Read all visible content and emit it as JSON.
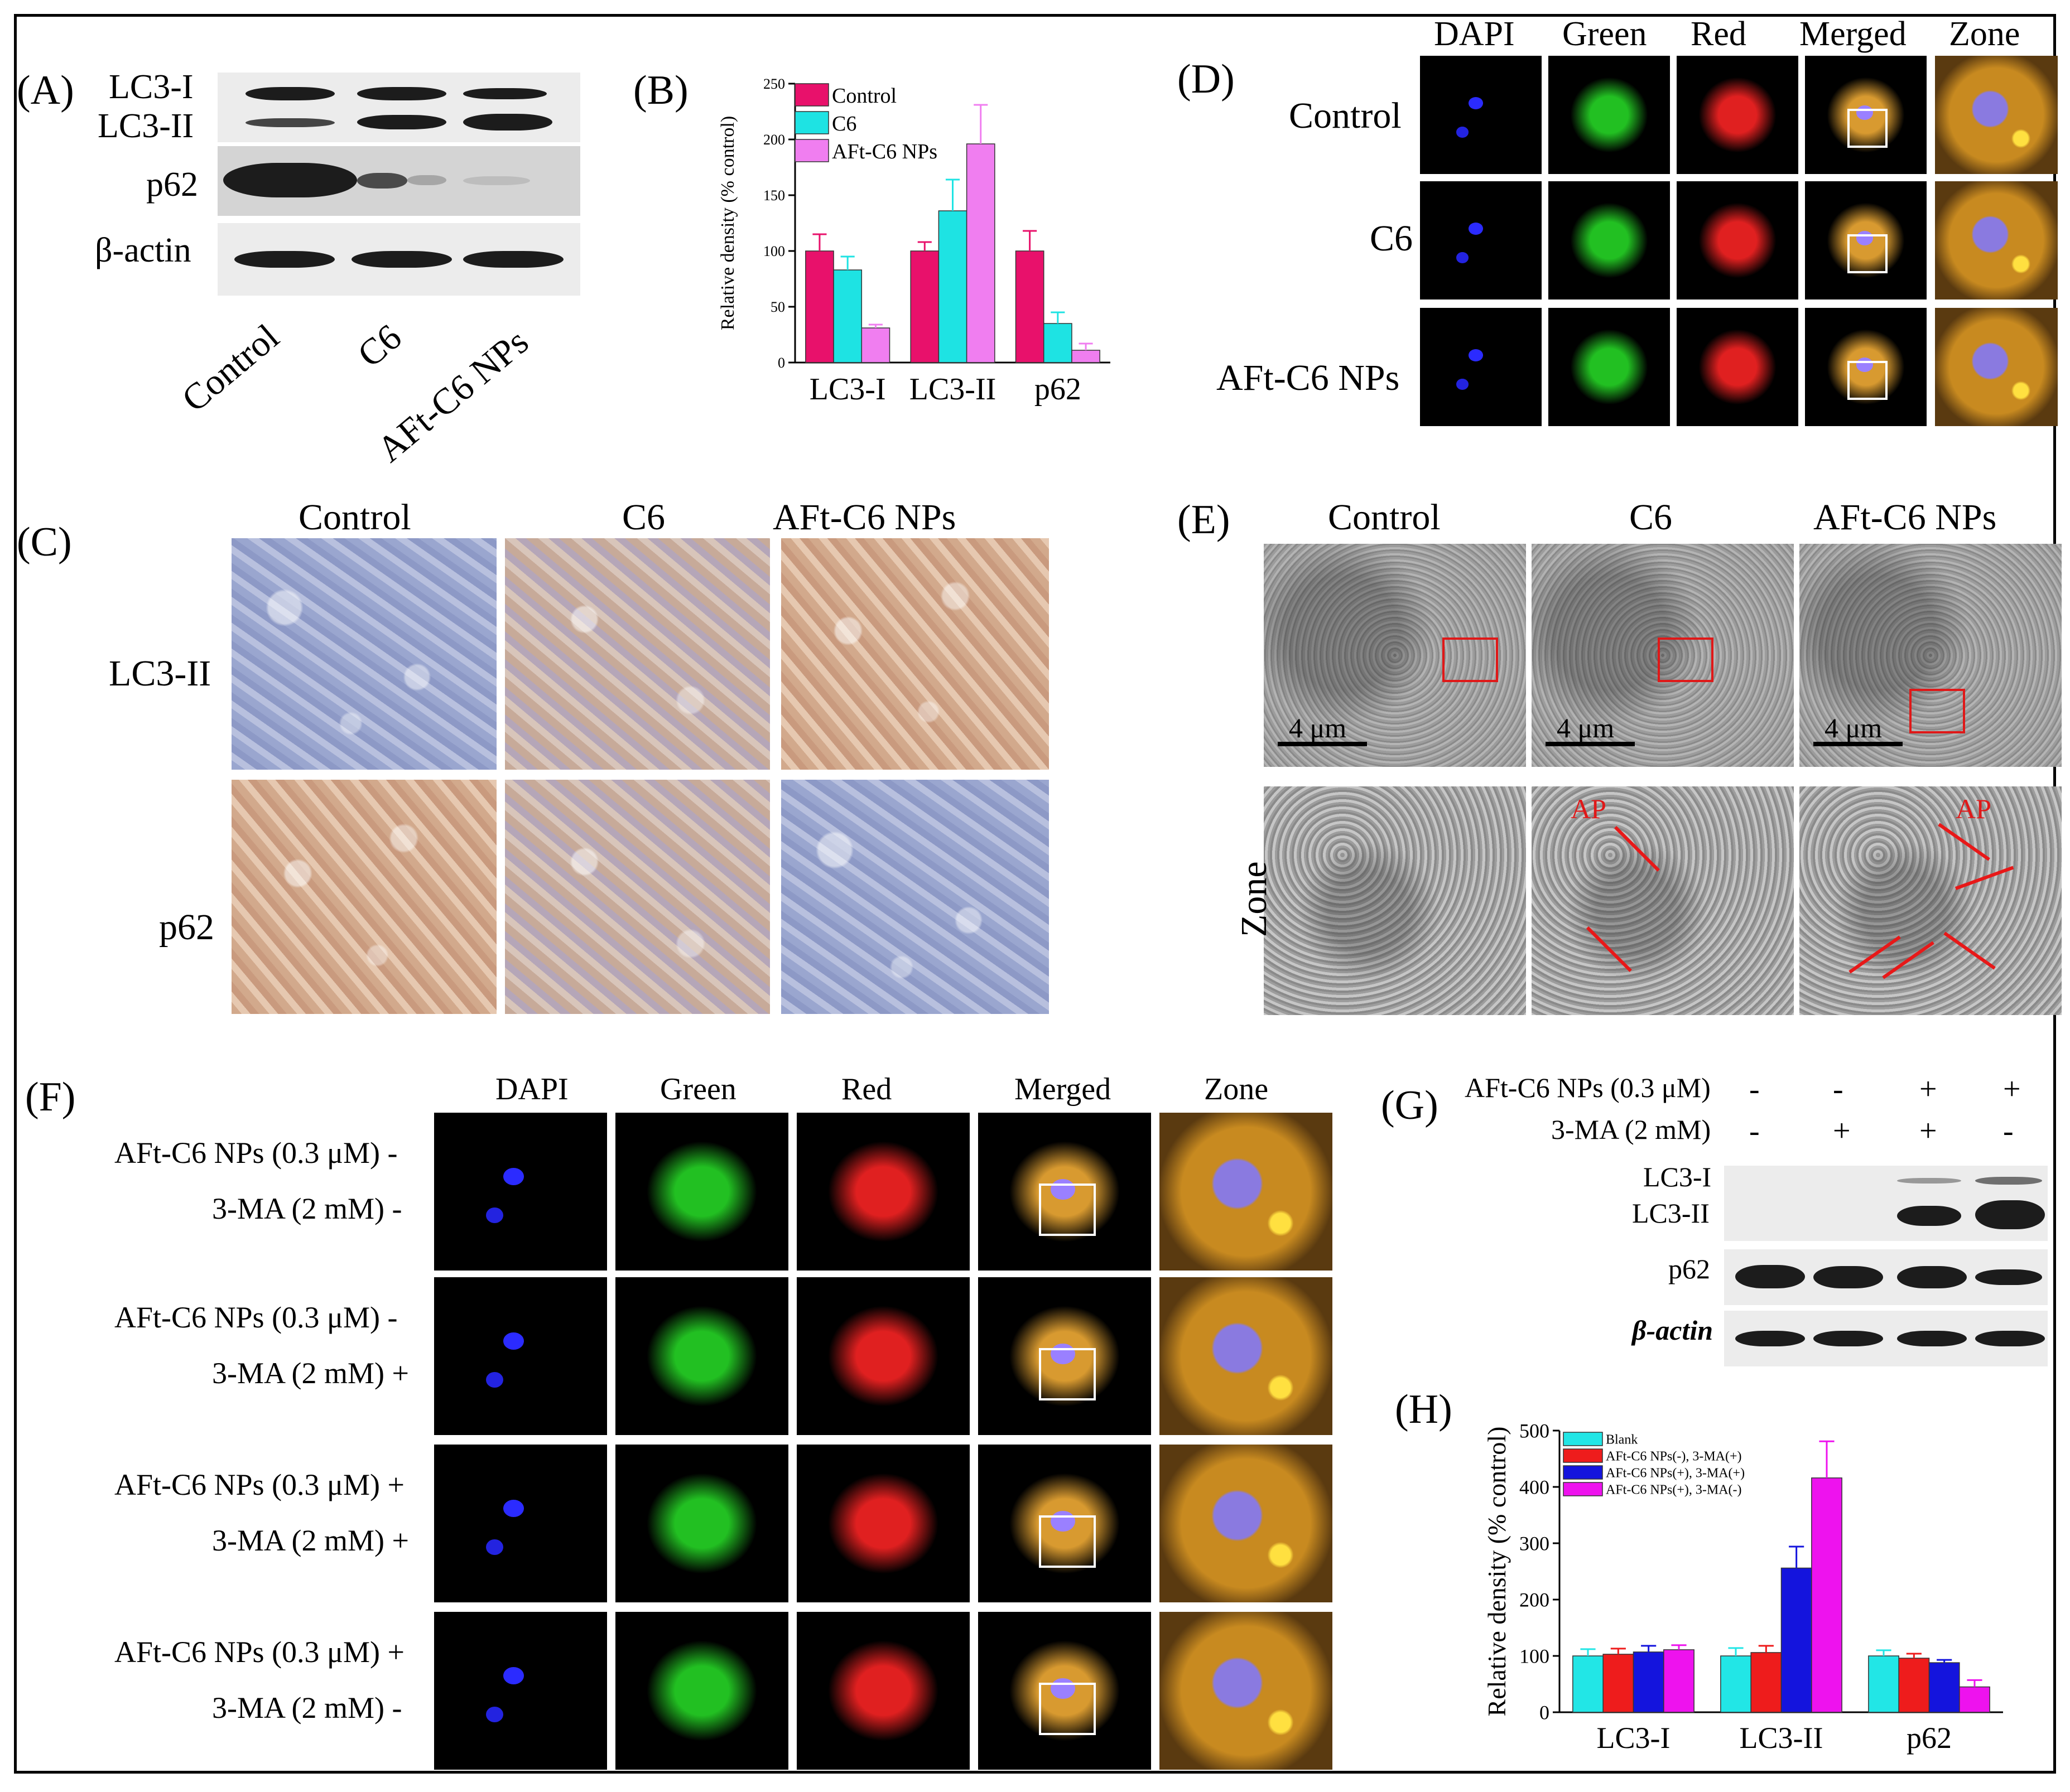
{
  "panels": {
    "A": "(A)",
    "B": "(B)",
    "C": "(C)",
    "D": "(D)",
    "E": "(E)",
    "F": "(F)",
    "G": "(G)",
    "H": "(H)"
  },
  "panel_a": {
    "row_labels": [
      "LC3-I",
      "LC3-II",
      "p62",
      "β-actin"
    ],
    "lane_labels": [
      "Control",
      "C6",
      "AFt-C6 NPs"
    ]
  },
  "panel_d": {
    "col_labels": [
      "DAPI",
      "Green",
      "Red",
      "Merged",
      "Zone"
    ],
    "row_labels": [
      "Control",
      "C6",
      "AFt-C6 NPs"
    ]
  },
  "panel_c": {
    "col_labels": [
      "Control",
      "C6",
      "AFt-C6 NPs"
    ],
    "row_labels": [
      "LC3-II",
      "p62"
    ]
  },
  "panel_e": {
    "col_labels": [
      "Control",
      "C6",
      "AFt-C6 NPs"
    ],
    "scale_label": "4 μm",
    "row_label": "Zone",
    "arrow_label": "AP"
  },
  "panel_f": {
    "col_labels": [
      "DAPI",
      "Green",
      "Red",
      "Merged",
      "Zone"
    ],
    "rows": [
      {
        "line1": "AFt-C6 NPs (0.3 μM) -",
        "line2": "3-MA (2 mM) -"
      },
      {
        "line1": "AFt-C6 NPs (0.3 μM) -",
        "line2": "3-MA (2 mM) +"
      },
      {
        "line1": "AFt-C6 NPs (0.3 μM) +",
        "line2": "3-MA (2 mM) +"
      },
      {
        "line1": "AFt-C6 NPs (0.3 μM) +",
        "line2": "3-MA (2 mM) -"
      }
    ]
  },
  "panel_g": {
    "treatment1": "AFt-C6 NPs (0.3 μM)",
    "treatment2": "3-MA (2 mM)",
    "signs1": [
      "-",
      "-",
      "+",
      "+"
    ],
    "signs2": [
      "-",
      "+",
      "+",
      "-"
    ],
    "row_labels": [
      "LC3-I",
      "LC3-II",
      "p62",
      "β-actin"
    ]
  },
  "chart_data": [
    {
      "panel": "B",
      "type": "bar",
      "ylabel": "Relative density (% control)",
      "ylim": [
        0,
        250
      ],
      "yticks": [
        0,
        50,
        100,
        150,
        200,
        250
      ],
      "categories": [
        "LC3-I",
        "LC3-II",
        "p62"
      ],
      "legend_position": "top-left",
      "series": [
        {
          "name": "Control",
          "color": "#e8116b",
          "values": [
            100,
            100,
            100
          ],
          "errors": [
            15,
            8,
            18
          ]
        },
        {
          "name": "C6",
          "color": "#1ee3e3",
          "values": [
            83,
            136,
            35
          ],
          "errors": [
            12,
            28,
            10
          ]
        },
        {
          "name": "AFt-C6 NPs",
          "color": "#f07ef0",
          "values": [
            31,
            196,
            11
          ],
          "errors": [
            3,
            35,
            6
          ]
        }
      ]
    },
    {
      "panel": "H",
      "type": "bar",
      "ylabel": "Relative density (% control)",
      "ylim": [
        0,
        500
      ],
      "yticks": [
        0,
        100,
        200,
        300,
        400,
        500
      ],
      "categories": [
        "LC3-I",
        "LC3-II",
        "p62"
      ],
      "legend_position": "top-left",
      "series": [
        {
          "name": "Blank",
          "color": "#22e6e6",
          "values": [
            100,
            100,
            100
          ],
          "errors": [
            12,
            14,
            10
          ]
        },
        {
          "name": "AFt-C6 NPs(-), 3-MA(+)",
          "color": "#ee1c1c",
          "values": [
            103,
            106,
            96
          ],
          "errors": [
            10,
            12,
            8
          ]
        },
        {
          "name": "AFt-C6 NPs(+), 3-MA(+)",
          "color": "#1414dd",
          "values": [
            107,
            256,
            88
          ],
          "errors": [
            11,
            38,
            5
          ]
        },
        {
          "name": "AFt-C6 NPs(+), 3-MA(-)",
          "color": "#ee12ee",
          "values": [
            111,
            416,
            45
          ],
          "errors": [
            8,
            65,
            12
          ]
        }
      ]
    }
  ]
}
